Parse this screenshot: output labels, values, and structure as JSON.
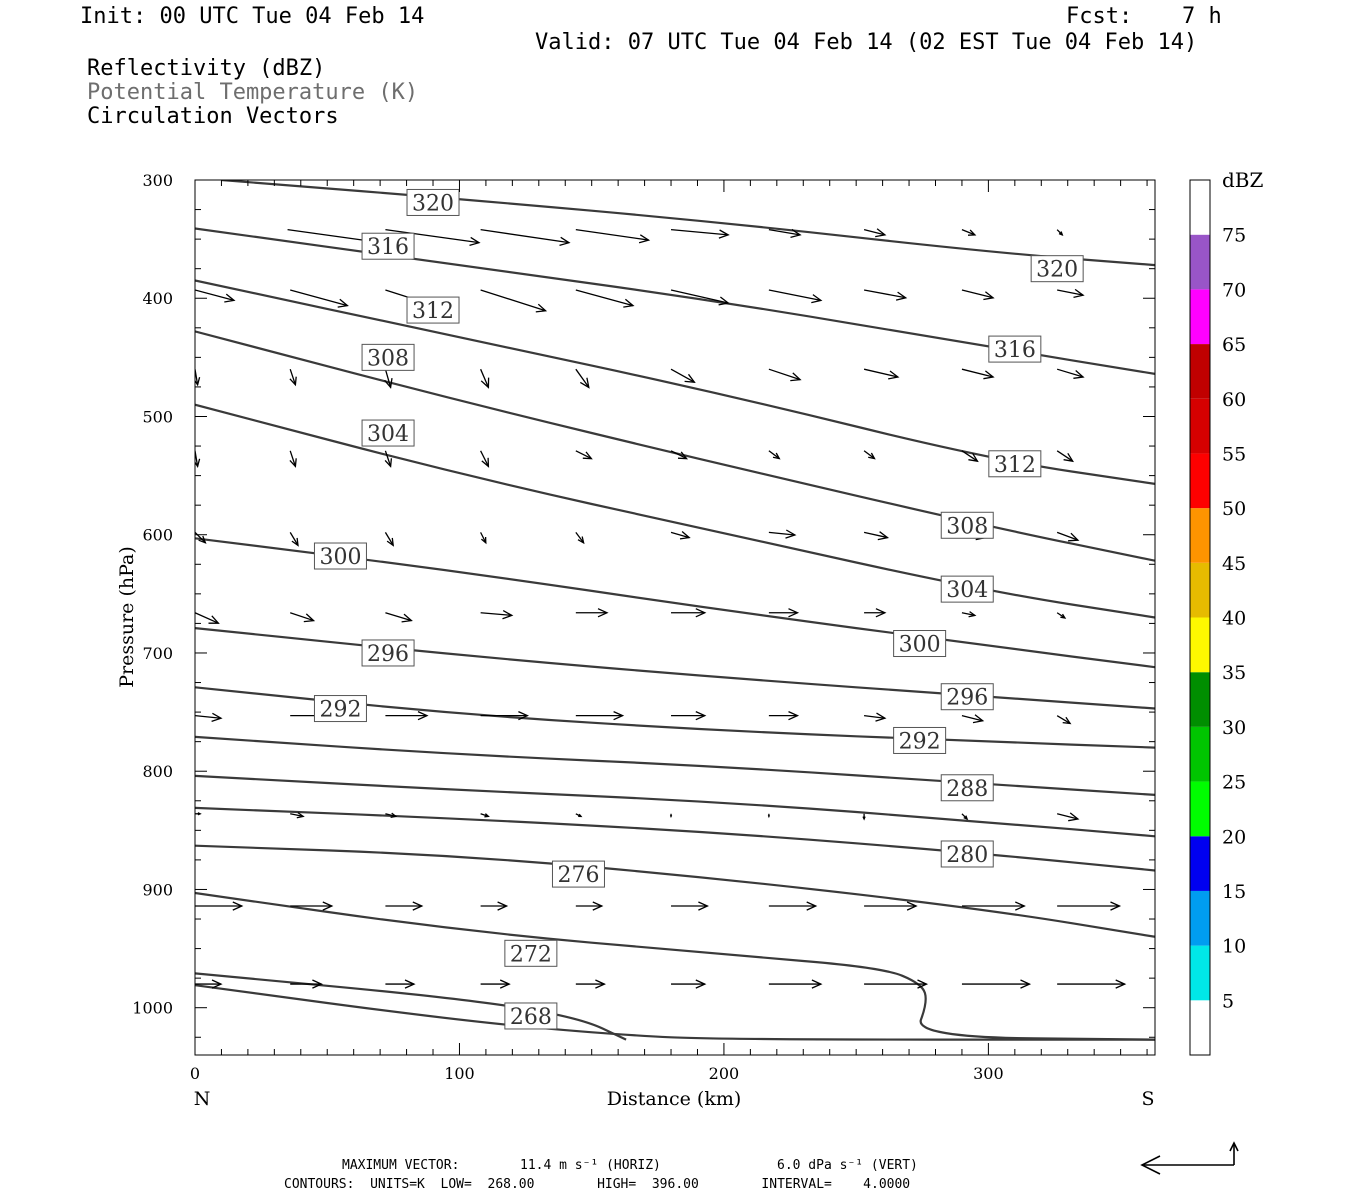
{
  "header": {
    "init": "Init: 00 UTC Tue 04 Feb 14",
    "fcst_label": "Fcst:",
    "fcst_value": "7 h",
    "valid": "Valid: 07 UTC Tue 04 Feb 14 (02 EST Tue 04 Feb 14)",
    "fields": [
      "Reflectivity (dBZ)",
      "Potential Temperature (K)",
      "Circulation Vectors"
    ]
  },
  "chart_data": {
    "type": "line",
    "xlabel": "Distance (km)",
    "ylabel": "Pressure (hPa)",
    "xlim": [
      0,
      363
    ],
    "ylim": [
      300,
      1040
    ],
    "x_ticks": [
      0,
      100,
      200,
      300
    ],
    "y_ticks": [
      300,
      400,
      500,
      600,
      700,
      800,
      900,
      1000
    ],
    "x_end_labels": {
      "left": "N",
      "right": "S"
    },
    "contours": [
      {
        "value": 320,
        "label": "320",
        "points": [
          [
            10,
            300
          ],
          [
            100,
            316
          ],
          [
            200,
            336
          ],
          [
            300,
            361
          ],
          [
            363,
            372
          ]
        ],
        "label_at": [
          [
            90,
            319
          ],
          [
            326,
            375
          ]
        ]
      },
      {
        "value": 316,
        "label": "316",
        "points": [
          [
            0,
            341
          ],
          [
            100,
            372
          ],
          [
            200,
            403
          ],
          [
            300,
            441
          ],
          [
            363,
            464
          ]
        ],
        "label_at": [
          [
            73,
            356
          ],
          [
            310,
            443
          ]
        ]
      },
      {
        "value": 312,
        "label": "312",
        "points": [
          [
            0,
            385
          ],
          [
            100,
            433
          ],
          [
            200,
            481
          ],
          [
            300,
            536
          ],
          [
            363,
            557
          ]
        ],
        "label_at": [
          [
            90,
            410
          ],
          [
            310,
            540
          ]
        ]
      },
      {
        "value": 308,
        "label": "308",
        "points": [
          [
            0,
            428
          ],
          [
            100,
            487
          ],
          [
            200,
            541
          ],
          [
            300,
            593
          ],
          [
            363,
            622
          ]
        ],
        "label_at": [
          [
            73,
            450
          ],
          [
            292,
            592
          ]
        ]
      },
      {
        "value": 304,
        "label": "304",
        "points": [
          [
            0,
            490
          ],
          [
            100,
            549
          ],
          [
            200,
            599
          ],
          [
            300,
            648
          ],
          [
            363,
            670
          ]
        ],
        "label_at": [
          [
            73,
            514
          ],
          [
            292,
            646
          ]
        ]
      },
      {
        "value": 300,
        "label": "300",
        "points": [
          [
            0,
            603
          ],
          [
            100,
            631
          ],
          [
            200,
            664
          ],
          [
            300,
            694
          ],
          [
            363,
            712
          ]
        ],
        "label_at": [
          [
            55,
            618
          ],
          [
            274,
            692
          ]
        ]
      },
      {
        "value": 296,
        "label": "296",
        "points": [
          [
            0,
            679
          ],
          [
            100,
            702
          ],
          [
            200,
            721
          ],
          [
            300,
            737
          ],
          [
            363,
            747
          ]
        ],
        "label_at": [
          [
            73,
            700
          ],
          [
            292,
            737
          ]
        ]
      },
      {
        "value": 292,
        "label": "292",
        "points": [
          [
            0,
            729
          ],
          [
            100,
            752
          ],
          [
            200,
            766
          ],
          [
            300,
            775
          ],
          [
            363,
            780
          ]
        ],
        "label_at": [
          [
            55,
            747
          ],
          [
            274,
            774
          ]
        ]
      },
      {
        "value": 288,
        "label": "288",
        "points": [
          [
            0,
            771
          ],
          [
            100,
            786
          ],
          [
            200,
            796
          ],
          [
            300,
            811
          ],
          [
            363,
            820
          ]
        ],
        "label_at": [
          [
            292,
            814
          ]
        ]
      },
      {
        "value": 284,
        "label": "",
        "points": [
          [
            0,
            804
          ],
          [
            100,
            816
          ],
          [
            200,
            826
          ],
          [
            300,
            843
          ],
          [
            363,
            855
          ]
        ],
        "label_at": []
      },
      {
        "value": 280,
        "label": "280",
        "points": [
          [
            0,
            831
          ],
          [
            100,
            840
          ],
          [
            200,
            852
          ],
          [
            300,
            870
          ],
          [
            363,
            884
          ]
        ],
        "label_at": [
          [
            292,
            870
          ]
        ]
      },
      {
        "value": 276,
        "label": "276",
        "points": [
          [
            0,
            863
          ],
          [
            100,
            871
          ],
          [
            200,
            891
          ],
          [
            300,
            917
          ],
          [
            363,
            940
          ]
        ],
        "label_at": [
          [
            145,
            887
          ]
        ]
      },
      {
        "value": 272,
        "label": "272",
        "points": [
          [
            0,
            903
          ],
          [
            100,
            935
          ],
          [
            200,
            955
          ],
          [
            260,
            966
          ],
          [
            275,
            980
          ],
          [
            277,
            995
          ],
          [
            272,
            1025
          ],
          [
            363,
            1027
          ]
        ],
        "label_at": [
          [
            127,
            954
          ]
        ]
      },
      {
        "value": 268,
        "label": "268",
        "points": [
          [
            0,
            971
          ],
          [
            100,
            992
          ],
          [
            145,
            1008
          ],
          [
            163,
            1027
          ]
        ],
        "label_at": [
          [
            127,
            1007
          ]
        ]
      },
      {
        "value": 264,
        "label": "",
        "points": [
          [
            0,
            981
          ],
          [
            100,
            1011
          ],
          [
            160,
            1023
          ],
          [
            200,
            1027
          ],
          [
            363,
            1027
          ]
        ],
        "label_at": []
      }
    ],
    "vectors": [
      {
        "rows": [
          354,
          354,
          354,
          354,
          354,
          354,
          354,
          354,
          354,
          354
        ],
        "x": [
          35,
          72,
          108,
          144,
          180,
          217,
          253,
          290,
          326
        ],
        "y": [
          342,
          342,
          342,
          342,
          342,
          342,
          342,
          342,
          342
        ],
        "u": [
          36,
          36,
          34,
          28,
          22,
          12,
          8,
          5,
          2
        ],
        "v": [
          5,
          5,
          5,
          4,
          2,
          2,
          2,
          2,
          2
        ]
      },
      {
        "x": [
          0,
          36,
          72,
          108,
          144,
          180,
          217,
          253,
          290,
          326
        ],
        "y": [
          393,
          393,
          393,
          393,
          393,
          393,
          393,
          393,
          393,
          393
        ],
        "u": [
          15,
          22,
          25,
          25,
          22,
          22,
          20,
          16,
          12,
          10
        ],
        "v": [
          4,
          6,
          8,
          8,
          6,
          5,
          4,
          3,
          3,
          2
        ]
      },
      {
        "x": [
          0,
          36,
          72,
          108,
          144,
          180,
          217,
          253,
          290,
          326
        ],
        "y": [
          460,
          460,
          460,
          460,
          460,
          460,
          460,
          460,
          460,
          460
        ],
        "u": [
          1,
          2,
          2,
          3,
          5,
          9,
          12,
          13,
          12,
          10
        ],
        "v": [
          6,
          6,
          7,
          7,
          7,
          5,
          4,
          3,
          3,
          3
        ]
      },
      {
        "x": [
          0,
          36,
          72,
          108,
          144,
          180,
          217,
          253,
          290,
          326
        ],
        "y": [
          529,
          529,
          529,
          529,
          529,
          529,
          529,
          529,
          529,
          529
        ],
        "u": [
          1,
          2,
          2,
          3,
          6,
          6,
          4,
          4,
          6,
          6
        ],
        "v": [
          6,
          6,
          6,
          6,
          3,
          3,
          3,
          3,
          4,
          4
        ]
      },
      {
        "x": [
          0,
          36,
          72,
          108,
          144,
          180,
          217,
          253,
          290,
          326
        ],
        "y": [
          598,
          598,
          598,
          598,
          598,
          598,
          598,
          598,
          598,
          598
        ],
        "u": [
          4,
          3,
          3,
          2,
          3,
          7,
          10,
          9,
          9,
          8
        ],
        "v": [
          4,
          5,
          5,
          4,
          4,
          2,
          1,
          2,
          2,
          3
        ]
      },
      {
        "x": [
          0,
          36,
          72,
          108,
          144,
          180,
          217,
          253,
          290,
          326
        ],
        "y": [
          666,
          666,
          666,
          666,
          666,
          666,
          666,
          666,
          666,
          666
        ],
        "u": [
          9,
          9,
          10,
          12,
          12,
          13,
          11,
          8,
          5,
          3
        ],
        "v": [
          4,
          3,
          3,
          1,
          0,
          0,
          0,
          0,
          1,
          2
        ]
      },
      {
        "x": [
          0,
          36,
          72,
          108,
          144,
          180,
          217,
          253,
          290,
          326
        ],
        "y": [
          753,
          753,
          753,
          753,
          753,
          753,
          753,
          753,
          753,
          753
        ],
        "u": [
          10,
          14,
          16,
          18,
          18,
          13,
          11,
          8,
          8,
          5
        ],
        "v": [
          1,
          0,
          0,
          0,
          0,
          0,
          0,
          1,
          2,
          3
        ]
      },
      {
        "x": [
          0,
          36,
          72,
          108,
          144,
          180,
          217,
          253,
          290,
          326
        ],
        "y": [
          836,
          836,
          836,
          836,
          836,
          836,
          836,
          836,
          836,
          836
        ],
        "u": [
          2,
          5,
          4,
          3,
          2,
          0,
          0,
          0,
          2,
          8
        ],
        "v": [
          0,
          1,
          1,
          1,
          1,
          1,
          1,
          2,
          2,
          2
        ]
      },
      {
        "x": [
          0,
          36,
          72,
          108,
          144,
          180,
          217,
          253,
          290,
          326
        ],
        "y": [
          914,
          914,
          914,
          914,
          914,
          914,
          914,
          914,
          914,
          914
        ],
        "u": [
          18,
          16,
          14,
          10,
          10,
          14,
          18,
          20,
          24,
          24
        ],
        "v": [
          0,
          0,
          0,
          0,
          0,
          0,
          0,
          0,
          0,
          0
        ]
      },
      {
        "x": [
          0,
          36,
          72,
          108,
          144,
          180,
          217,
          253,
          290,
          326
        ],
        "y": [
          980,
          980,
          980,
          980,
          980,
          980,
          980,
          980,
          980,
          980
        ],
        "u": [
          10,
          12,
          11,
          11,
          11,
          13,
          20,
          24,
          26,
          26
        ],
        "v": [
          0,
          0,
          0,
          0,
          0,
          0,
          0,
          0,
          0,
          0
        ]
      }
    ],
    "colorbar": {
      "title": "dBZ",
      "levels": [
        "5",
        "10",
        "15",
        "20",
        "25",
        "30",
        "35",
        "40",
        "45",
        "50",
        "55",
        "60",
        "65",
        "70",
        "75"
      ],
      "colors": [
        "#ffffff",
        "#00e8e8",
        "#009df0",
        "#0000f0",
        "#00fd00",
        "#00c500",
        "#008e00",
        "#fdf800",
        "#e6bb00",
        "#fd9400",
        "#fd0000",
        "#d60000",
        "#c00000",
        "#ff00ff",
        "#9955c8",
        "#ffffff"
      ]
    }
  },
  "footer": {
    "line1_label": "MAXIMUM VECTOR:",
    "line1_horiz": "11.4 m s⁻¹ (HORIZ)",
    "line1_vert": "6.0 dPa s⁻¹ (VERT)",
    "line2": "CONTOURS:  UNITS=K  LOW=  268.00        HIGH=  396.00        INTERVAL=    4.0000"
  }
}
